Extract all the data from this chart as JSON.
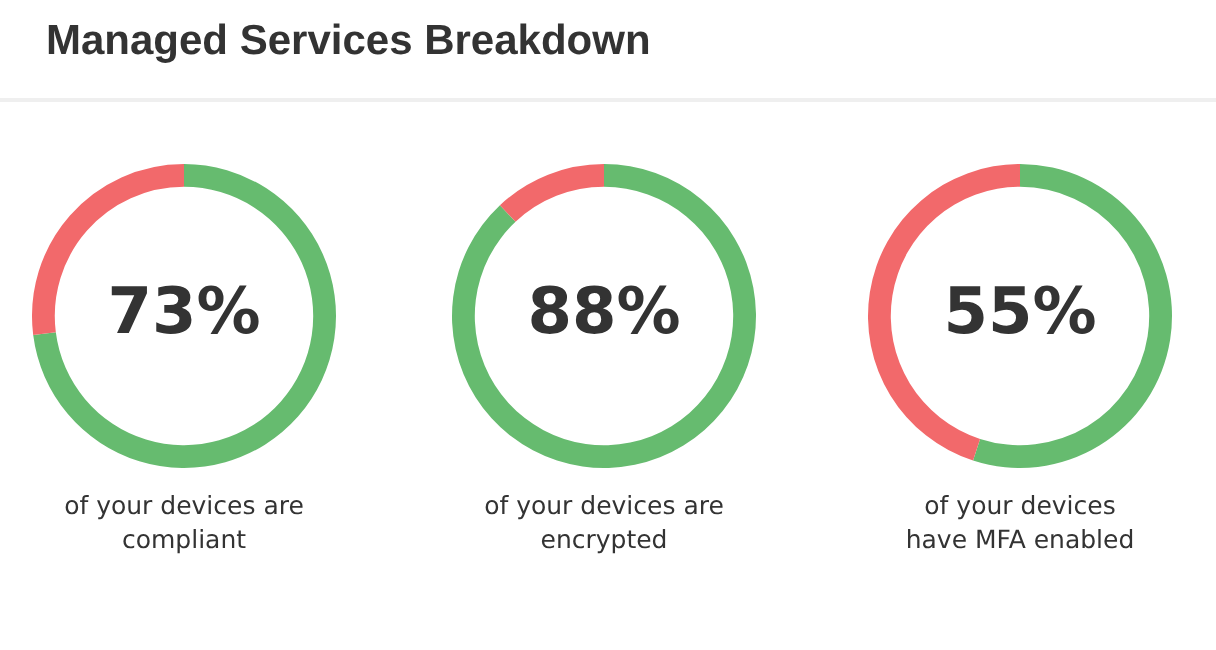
{
  "chart_data": [
    {
      "type": "donut",
      "title": "Managed Services Breakdown",
      "categories": [
        null,
        null
      ],
      "values": [
        73,
        27
      ],
      "colors": [
        "#66bb6f",
        "#f2696b"
      ],
      "value_labels": [
        "73%",
        null
      ],
      "annotations": [
        "of your devices are\ncompliant"
      ]
    },
    {
      "type": "donut",
      "categories": [
        null,
        null
      ],
      "values": [
        88,
        12
      ],
      "colors": [
        "#66bb6f",
        "#f2696b"
      ],
      "value_labels": [
        "88%",
        null
      ],
      "annotations": [
        "of your devices are\nencrypted"
      ]
    },
    {
      "type": "donut",
      "categories": [
        null,
        null
      ],
      "values": [
        55,
        45
      ],
      "colors": [
        "#66bb6f",
        "#f2696b"
      ],
      "value_labels": [
        "55%",
        null
      ],
      "annotations": [
        "of your devices\nhave MFA enabled"
      ]
    }
  ]
}
